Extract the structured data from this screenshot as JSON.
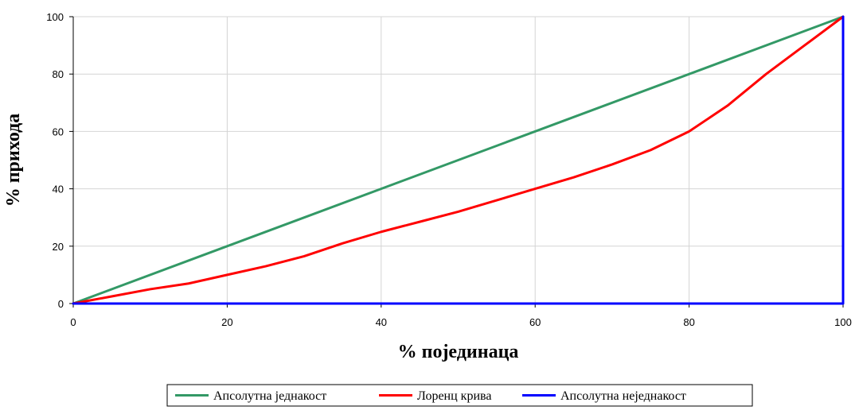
{
  "chart_data": {
    "type": "line",
    "title": "",
    "xlabel": "% појединаца",
    "ylabel": "% прихода",
    "xlim": [
      0,
      100
    ],
    "ylim": [
      0,
      100
    ],
    "xticks": [
      0,
      20,
      40,
      60,
      80,
      100
    ],
    "yticks": [
      0,
      20,
      40,
      60,
      80,
      100
    ],
    "grid": true,
    "legend_position": "bottom",
    "series": [
      {
        "name": "Апсолутна једнакост",
        "color": "#339966",
        "x": [
          0,
          100
        ],
        "y": [
          0,
          100
        ]
      },
      {
        "name": "Лоренц крива",
        "color": "#ff0000",
        "x": [
          0,
          5,
          10,
          15,
          20,
          25,
          30,
          35,
          40,
          45,
          50,
          55,
          60,
          65,
          70,
          75,
          80,
          85,
          90,
          95,
          100
        ],
        "y": [
          0,
          2.5,
          5,
          7,
          10,
          13,
          16.5,
          21,
          25,
          28.5,
          32,
          36,
          40,
          44,
          48.5,
          53.5,
          60,
          69,
          80,
          90,
          100
        ]
      },
      {
        "name": "Апсолутна неједнакост",
        "color": "#0000ff",
        "x": [
          0,
          100,
          100
        ],
        "y": [
          0,
          0,
          100
        ]
      }
    ]
  }
}
